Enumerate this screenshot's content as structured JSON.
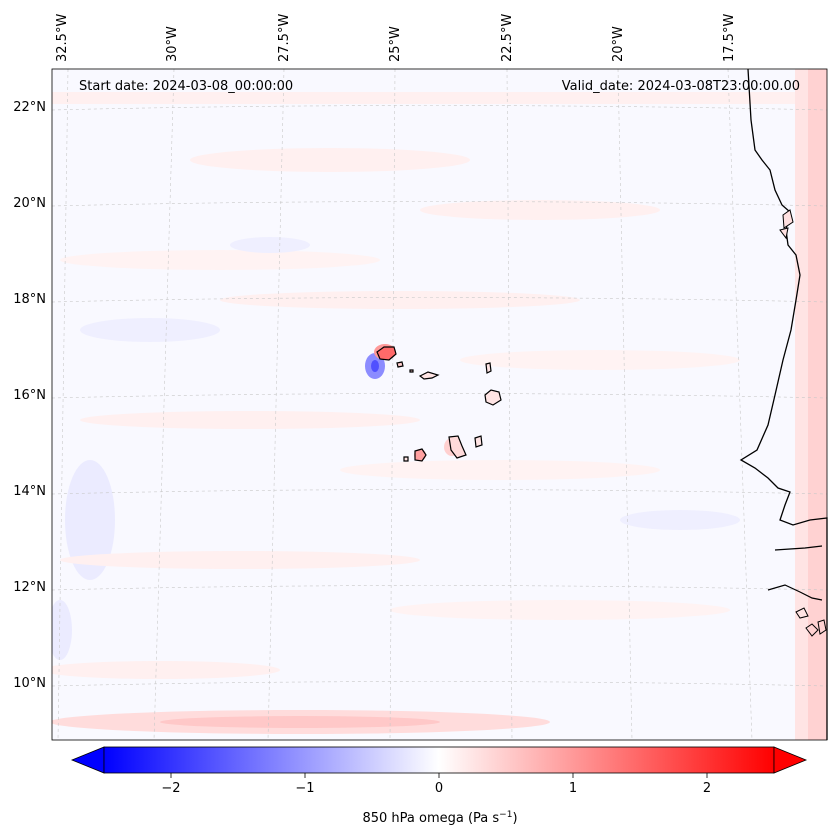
{
  "map": {
    "start_date": "Start date: 2024-03-08_00:00:00",
    "valid_date": "Valid_date: 2024-03-08T23:00:00.00",
    "lon_labels": [
      "32.5°W",
      "30°W",
      "27.5°W",
      "25°W",
      "22.5°W",
      "20°W",
      "17.5°W"
    ],
    "lat_labels": [
      "22°N",
      "20°N",
      "18°N",
      "16°N",
      "14°N",
      "12°N",
      "10°N"
    ],
    "colorbar": {
      "ticks": [
        "−2",
        "−1",
        "0",
        "1",
        "2"
      ],
      "tick_values": [
        -2,
        -1,
        0,
        1,
        2
      ],
      "range": [
        -2.5,
        2.5
      ],
      "label_main": "850 hPa omega (Pa s",
      "label_sup": "−1",
      "label_end": ")",
      "colors": {
        "neg": "#0000ff",
        "zero": "#ffffff",
        "pos": "#ff0000"
      }
    },
    "colors": {
      "coast": "#000000",
      "grid": "#c8c8c8"
    }
  }
}
